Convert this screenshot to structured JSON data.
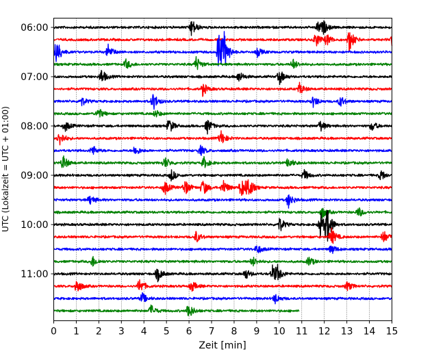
{
  "chart_data": {
    "type": "line",
    "title": "",
    "xlabel": "Zeit  [min]",
    "ylabel": "UTC (Lokalzeit = UTC + 01:00)",
    "xlim": [
      0,
      15
    ],
    "x_ticks": [
      0,
      1,
      2,
      3,
      4,
      5,
      6,
      7,
      8,
      9,
      10,
      11,
      12,
      13,
      14,
      15
    ],
    "x_tick_labels": [
      "0",
      "1",
      "2",
      "3",
      "4",
      "5",
      "6",
      "7",
      "8",
      "9",
      "10",
      "11",
      "12",
      "13",
      "14",
      "15"
    ],
    "grid": "vertical dotted lines at each minute",
    "y_tick_labels": [
      "06:00",
      "07:00",
      "08:00",
      "09:00",
      "10:00",
      "11:00"
    ],
    "trace_interval_minutes": 15,
    "first_trace_start": "06:00",
    "color_cycle": [
      "#000000",
      "#ff0000",
      "#0000ff",
      "#008000"
    ],
    "series": [
      {
        "start": "06:00",
        "color": "#000000",
        "x_end": 15,
        "events": [
          [
            6.1,
            14
          ],
          [
            11.7,
            10
          ],
          [
            11.95,
            8
          ]
        ]
      },
      {
        "start": "06:15",
        "color": "#ff0000",
        "x_end": 15,
        "events": [
          [
            11.6,
            12
          ],
          [
            12.1,
            9
          ],
          [
            13.1,
            18
          ],
          [
            15.0,
            8
          ]
        ]
      },
      {
        "start": "06:30",
        "color": "#0000ff",
        "x_end": 15,
        "events": [
          [
            0.1,
            22
          ],
          [
            2.4,
            12
          ],
          [
            7.3,
            38
          ],
          [
            7.55,
            22
          ],
          [
            9.0,
            8
          ]
        ]
      },
      {
        "start": "06:45",
        "color": "#008000",
        "x_end": 15,
        "events": [
          [
            3.2,
            8
          ],
          [
            6.3,
            12
          ],
          [
            10.6,
            8
          ]
        ]
      },
      {
        "start": "07:00",
        "color": "#000000",
        "x_end": 15,
        "events": [
          [
            2.1,
            12
          ],
          [
            8.2,
            9
          ],
          [
            10.0,
            12
          ]
        ]
      },
      {
        "start": "07:15",
        "color": "#ff0000",
        "x_end": 15,
        "events": [
          [
            6.6,
            10
          ],
          [
            10.9,
            9
          ]
        ]
      },
      {
        "start": "07:30",
        "color": "#0000ff",
        "x_end": 15,
        "events": [
          [
            1.2,
            8
          ],
          [
            4.4,
            14
          ],
          [
            11.5,
            9
          ],
          [
            12.7,
            9
          ]
        ]
      },
      {
        "start": "07:45",
        "color": "#008000",
        "x_end": 15,
        "events": [
          [
            1.95,
            10
          ],
          [
            4.5,
            6
          ]
        ]
      },
      {
        "start": "08:00",
        "color": "#000000",
        "x_end": 15,
        "events": [
          [
            0.5,
            8
          ],
          [
            5.1,
            12
          ],
          [
            6.8,
            12
          ],
          [
            11.8,
            9
          ],
          [
            14.1,
            8
          ]
        ]
      },
      {
        "start": "08:15",
        "color": "#ff0000",
        "x_end": 15,
        "events": [
          [
            0.25,
            12
          ],
          [
            7.4,
            12
          ]
        ]
      },
      {
        "start": "08:30",
        "color": "#0000ff",
        "x_end": 15,
        "events": [
          [
            1.7,
            8
          ],
          [
            3.6,
            8
          ],
          [
            6.5,
            8
          ]
        ]
      },
      {
        "start": "08:45",
        "color": "#008000",
        "x_end": 15,
        "events": [
          [
            0.4,
            12
          ],
          [
            4.9,
            10
          ],
          [
            6.65,
            9
          ],
          [
            10.4,
            9
          ]
        ]
      },
      {
        "start": "09:00",
        "color": "#000000",
        "x_end": 15,
        "events": [
          [
            5.2,
            9
          ],
          [
            14.5,
            9
          ],
          [
            11.1,
            8
          ]
        ]
      },
      {
        "start": "09:15",
        "color": "#ff0000",
        "x_end": 15,
        "events": [
          [
            4.9,
            12
          ],
          [
            5.8,
            13
          ],
          [
            6.6,
            14
          ],
          [
            7.5,
            13
          ],
          [
            8.3,
            16
          ],
          [
            8.6,
            18
          ]
        ]
      },
      {
        "start": "09:30",
        "color": "#0000ff",
        "x_end": 15,
        "events": [
          [
            1.6,
            8
          ],
          [
            10.4,
            12
          ]
        ]
      },
      {
        "start": "09:45",
        "color": "#008000",
        "x_end": 15,
        "events": [
          [
            11.9,
            9
          ],
          [
            13.5,
            8
          ]
        ]
      },
      {
        "start": "10:00",
        "color": "#000000",
        "x_end": 15,
        "events": [
          [
            10.0,
            12
          ],
          [
            11.8,
            22
          ],
          [
            12.1,
            28
          ]
        ]
      },
      {
        "start": "10:15",
        "color": "#ff0000",
        "x_end": 15,
        "events": [
          [
            6.3,
            9
          ],
          [
            12.3,
            14
          ],
          [
            14.6,
            11
          ]
        ]
      },
      {
        "start": "10:30",
        "color": "#0000ff",
        "x_end": 15,
        "events": [
          [
            9.0,
            8
          ],
          [
            12.3,
            8
          ]
        ]
      },
      {
        "start": "10:45",
        "color": "#008000",
        "x_end": 15,
        "events": [
          [
            1.7,
            9
          ],
          [
            8.8,
            8
          ],
          [
            11.3,
            8
          ]
        ]
      },
      {
        "start": "11:00",
        "color": "#000000",
        "x_end": 15,
        "events": [
          [
            4.6,
            11
          ],
          [
            9.7,
            12
          ],
          [
            9.9,
            11
          ],
          [
            8.5,
            8
          ]
        ]
      },
      {
        "start": "11:15",
        "color": "#ff0000",
        "x_end": 15,
        "events": [
          [
            1.0,
            13
          ],
          [
            3.8,
            12
          ],
          [
            6.1,
            9
          ],
          [
            13.0,
            8
          ]
        ]
      },
      {
        "start": "11:30",
        "color": "#0000ff",
        "x_end": 15,
        "events": [
          [
            3.9,
            9
          ],
          [
            9.8,
            8
          ]
        ]
      },
      {
        "start": "11:45",
        "color": "#008000",
        "x_end": 10.9,
        "events": [
          [
            4.3,
            9
          ],
          [
            5.95,
            14
          ]
        ]
      }
    ]
  }
}
